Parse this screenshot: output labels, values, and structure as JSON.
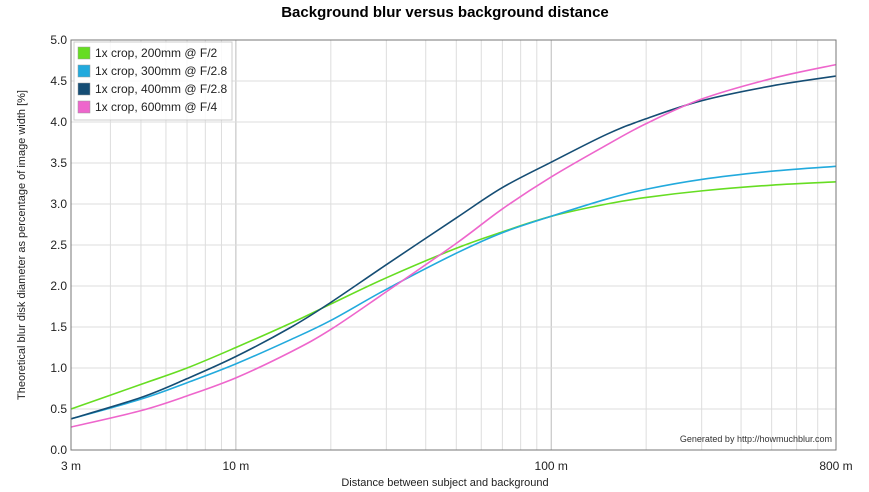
{
  "chart_data": {
    "type": "line",
    "title": "Background blur versus background distance",
    "xlabel": "Distance between subject and background",
    "ylabel": "Theoretical blur disk diameter as percentage of image width [%]",
    "x_scale": "log",
    "xlim": [
      3,
      800
    ],
    "ylim": [
      0,
      5
    ],
    "grid": true,
    "legend_position": "top-left",
    "credit": "Generated by http://howmuchblur.com",
    "x_ticks": [
      {
        "value": 3,
        "label": "3 m"
      },
      {
        "value": 10,
        "label": "10 m"
      },
      {
        "value": 100,
        "label": "100 m"
      },
      {
        "value": 800,
        "label": "800 m"
      }
    ],
    "y_ticks": [
      {
        "value": 0,
        "label": "0.0"
      },
      {
        "value": 0.5,
        "label": "0.5"
      },
      {
        "value": 1,
        "label": "1.0"
      },
      {
        "value": 1.5,
        "label": "1.5"
      },
      {
        "value": 2,
        "label": "2.0"
      },
      {
        "value": 2.5,
        "label": "2.5"
      },
      {
        "value": 3,
        "label": "3.0"
      },
      {
        "value": 3.5,
        "label": "3.5"
      },
      {
        "value": 4,
        "label": "4.0"
      },
      {
        "value": 4.5,
        "label": "4.5"
      },
      {
        "value": 5,
        "label": "5.0"
      }
    ],
    "series": [
      {
        "name": "1x crop, 200mm @ F/2",
        "color": "#66dd22",
        "x": [
          3,
          5,
          7,
          10,
          15,
          20,
          30,
          50,
          70,
          100,
          150,
          200,
          300,
          500,
          800
        ],
        "y": [
          0.5,
          0.8,
          1.0,
          1.25,
          1.55,
          1.78,
          2.1,
          2.46,
          2.66,
          2.85,
          3.0,
          3.08,
          3.16,
          3.23,
          3.27
        ]
      },
      {
        "name": "1x crop, 300mm @ F/2.8",
        "color": "#22aadd",
        "x": [
          3,
          5,
          7,
          10,
          15,
          20,
          30,
          50,
          70,
          100,
          150,
          200,
          300,
          500,
          800
        ],
        "y": [
          0.38,
          0.62,
          0.82,
          1.05,
          1.35,
          1.58,
          1.96,
          2.4,
          2.65,
          2.85,
          3.06,
          3.18,
          3.3,
          3.4,
          3.46
        ]
      },
      {
        "name": "1x crop, 400mm @ F/2.8",
        "color": "#154d74",
        "x": [
          3,
          5,
          7,
          10,
          15,
          20,
          30,
          50,
          70,
          100,
          150,
          200,
          300,
          500,
          800
        ],
        "y": [
          0.38,
          0.64,
          0.87,
          1.14,
          1.5,
          1.8,
          2.26,
          2.83,
          3.2,
          3.51,
          3.85,
          4.04,
          4.26,
          4.44,
          4.56
        ]
      },
      {
        "name": "1x crop, 600mm @ F/4",
        "color": "#ee66cc",
        "x": [
          3,
          5,
          7,
          10,
          15,
          20,
          30,
          50,
          70,
          100,
          150,
          200,
          300,
          500,
          800
        ],
        "y": [
          0.28,
          0.48,
          0.66,
          0.88,
          1.2,
          1.47,
          1.93,
          2.52,
          2.94,
          3.33,
          3.72,
          3.98,
          4.28,
          4.53,
          4.7
        ]
      }
    ]
  }
}
